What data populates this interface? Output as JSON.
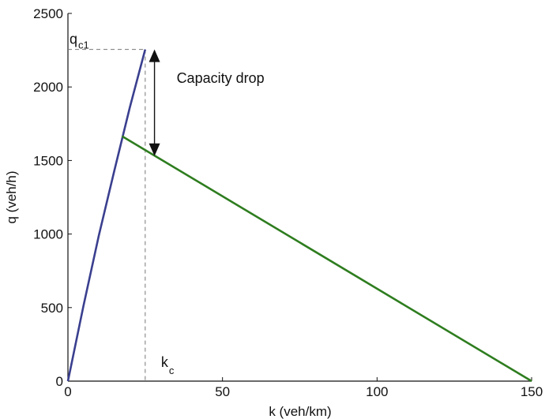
{
  "chart_data": {
    "type": "line",
    "title": "",
    "xlabel": "k (veh/km)",
    "ylabel": "q (veh/h)",
    "xlim": [
      0,
      150
    ],
    "ylim": [
      0,
      2500
    ],
    "x_ticks": [
      0,
      50,
      100,
      150
    ],
    "y_ticks": [
      0,
      500,
      1000,
      1500,
      2000,
      2500
    ],
    "grid": false,
    "series": [
      {
        "color": "#3a3f8f",
        "x": [
          0,
          5,
          10,
          15,
          20,
          25
        ],
        "y": [
          0,
          510,
          990,
          1430,
          1860,
          2255
        ]
      },
      {
        "color": "#2e7d1f",
        "x": [
          17.5,
          150
        ],
        "y": [
          1665,
          0
        ]
      }
    ],
    "reference_lines": {
      "qc1": {
        "label": "q",
        "subscript": "c1",
        "y": 2255
      },
      "kc": {
        "label": "k",
        "subscript": "c",
        "x": 25
      }
    },
    "annotation": {
      "text": "Capacity drop",
      "x": 28,
      "y_top": 2255,
      "y_bottom": 1530
    }
  }
}
